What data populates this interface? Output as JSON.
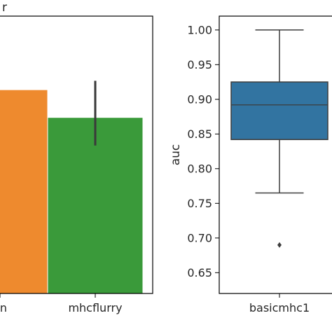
{
  "chart_data": [
    {
      "type": "bar",
      "title_fragment": "r",
      "categories": [
        "an",
        "mhcflurry"
      ],
      "values": [
        0.92,
        0.89
      ],
      "errors": [
        null,
        [
          0.86,
          0.93
        ]
      ],
      "colors": [
        "#ee8a2e",
        "#3a9a3a"
      ],
      "error_color": "#3a3a3a",
      "ylim": [
        0.7,
        1.0
      ],
      "xlabel": "",
      "ylabel": ""
    },
    {
      "type": "box",
      "categories": [
        "basicmhc1"
      ],
      "box": {
        "whisker_low": 0.765,
        "q1": 0.842,
        "median": 0.892,
        "q3": 0.925,
        "whisker_high": 1.0,
        "outliers": [
          0.69
        ]
      },
      "color": "#3274a1",
      "ylim": [
        0.62,
        1.02
      ],
      "yticks": [
        "0.65",
        "0.70",
        "0.75",
        "0.80",
        "0.85",
        "0.90",
        "0.95",
        "1.00"
      ],
      "ylabel": "auc",
      "xlabel": ""
    }
  ]
}
